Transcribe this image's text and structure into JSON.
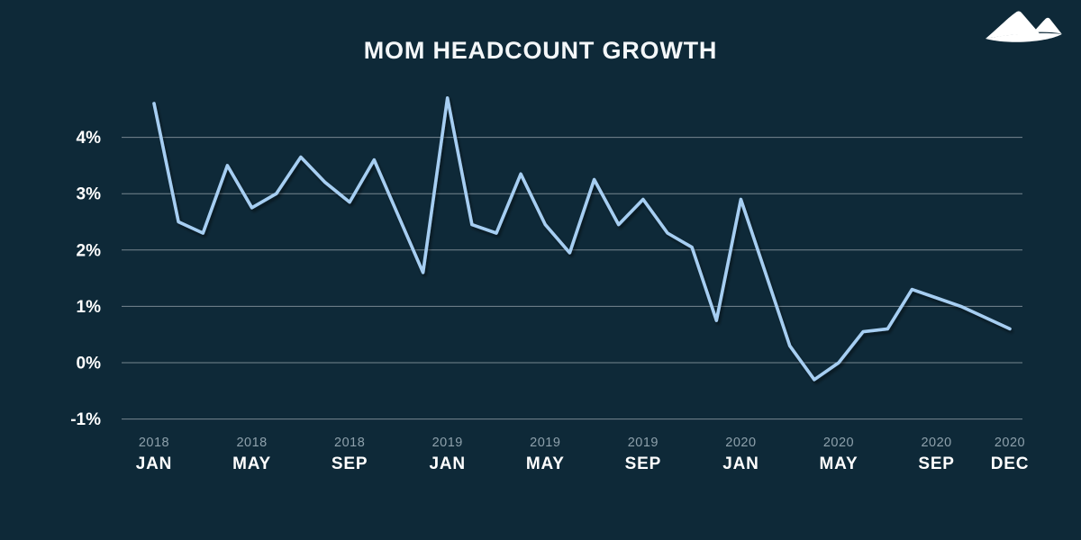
{
  "page": {
    "background_color": "#0e2938"
  },
  "header": {
    "title": "MOM HEADCOUNT GROWTH",
    "logo_icon": "mountains-logo"
  },
  "chart_data": {
    "type": "line",
    "title": "MOM HEADCOUNT GROWTH",
    "legend": "none",
    "grid": "horizontal",
    "line_color": "#a6cef2",
    "categories": [
      "Jan 2018",
      "Feb 2018",
      "Mar 2018",
      "Apr 2018",
      "May 2018",
      "Jun 2018",
      "Jul 2018",
      "Aug 2018",
      "Sep 2018",
      "Oct 2018",
      "Nov 2018",
      "Dec 2018",
      "Jan 2019",
      "Feb 2019",
      "Mar 2019",
      "Apr 2019",
      "May 2019",
      "Jun 2019",
      "Jul 2019",
      "Aug 2019",
      "Sep 2019",
      "Oct 2019",
      "Nov 2019",
      "Dec 2019",
      "Jan 2020",
      "Feb 2020",
      "Mar 2020",
      "Apr 2020",
      "May 2020",
      "Jun 2020",
      "Jul 2020",
      "Aug 2020",
      "Sep 2020",
      "Oct 2020",
      "Nov 2020",
      "Dec 2020"
    ],
    "series": [
      {
        "name": "MoM headcount growth (%)",
        "values": [
          4.6,
          2.5,
          2.3,
          3.5,
          2.75,
          3.0,
          3.65,
          3.2,
          2.85,
          3.6,
          2.6,
          1.6,
          4.7,
          2.45,
          2.3,
          3.35,
          2.45,
          1.95,
          3.25,
          2.45,
          2.9,
          2.3,
          2.05,
          0.75,
          2.9,
          1.6,
          0.3,
          -0.3,
          0.0,
          0.55,
          0.6,
          1.3,
          1.15,
          1.0,
          0.8,
          0.6
        ]
      }
    ],
    "y_ticks": [
      {
        "label": "4%",
        "value": 4
      },
      {
        "label": "3%",
        "value": 3
      },
      {
        "label": "2%",
        "value": 2
      },
      {
        "label": "1%",
        "value": 1
      },
      {
        "label": "0%",
        "value": 0
      },
      {
        "label": "-1%",
        "value": -1
      }
    ],
    "x_tick_labels": [
      {
        "index": 0,
        "year": "2018",
        "month": "JAN"
      },
      {
        "index": 4,
        "year": "2018",
        "month": "MAY"
      },
      {
        "index": 8,
        "year": "2018",
        "month": "SEP"
      },
      {
        "index": 12,
        "year": "2019",
        "month": "JAN"
      },
      {
        "index": 16,
        "year": "2019",
        "month": "MAY"
      },
      {
        "index": 20,
        "year": "2019",
        "month": "SEP"
      },
      {
        "index": 24,
        "year": "2020",
        "month": "JAN"
      },
      {
        "index": 28,
        "year": "2020",
        "month": "MAY"
      },
      {
        "index": 32,
        "year": "2020",
        "month": "SEP"
      },
      {
        "index": 35,
        "year": "2020",
        "month": "DEC"
      }
    ],
    "ylim": [
      -1.5,
      4.85
    ],
    "xlabel": "",
    "ylabel": ""
  }
}
